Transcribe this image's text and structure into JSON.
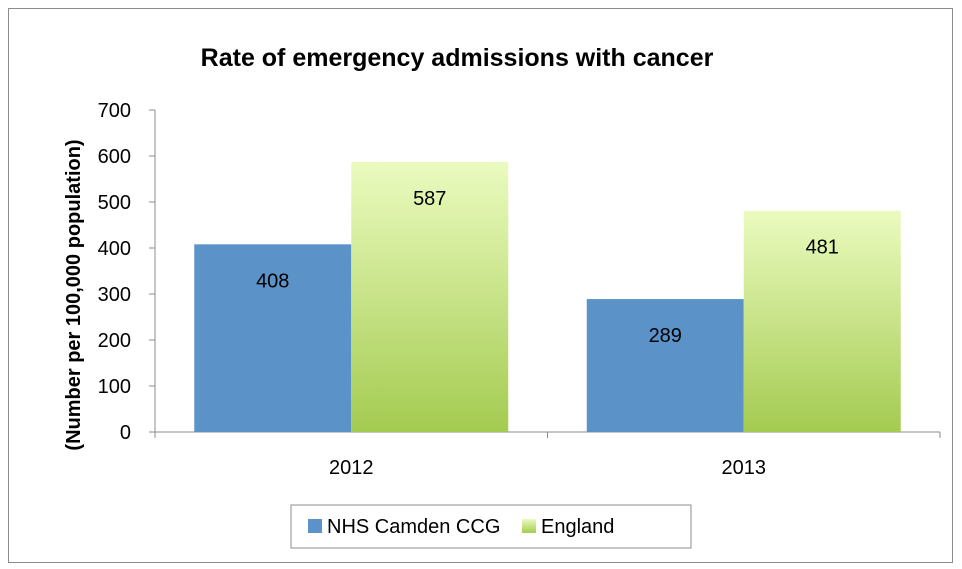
{
  "chart_data": {
    "type": "bar",
    "title": "Rate of emergency admissions with cancer",
    "xlabel": "",
    "ylabel": "(Number per 100,000 population)",
    "categories": [
      "2012",
      "2013"
    ],
    "series": [
      {
        "name": "NHS Camden CCG",
        "values": [
          408,
          289
        ],
        "color": "#5b93c9"
      },
      {
        "name": "England",
        "values": [
          587,
          481
        ],
        "color_top": "#ebfbbf",
        "color_bottom": "#a4cb51"
      }
    ],
    "ylim": [
      0,
      700
    ],
    "yticks": [
      0,
      100,
      200,
      300,
      400,
      500,
      600,
      700
    ],
    "grid": false,
    "legend_position": "bottom",
    "data_labels": true
  }
}
